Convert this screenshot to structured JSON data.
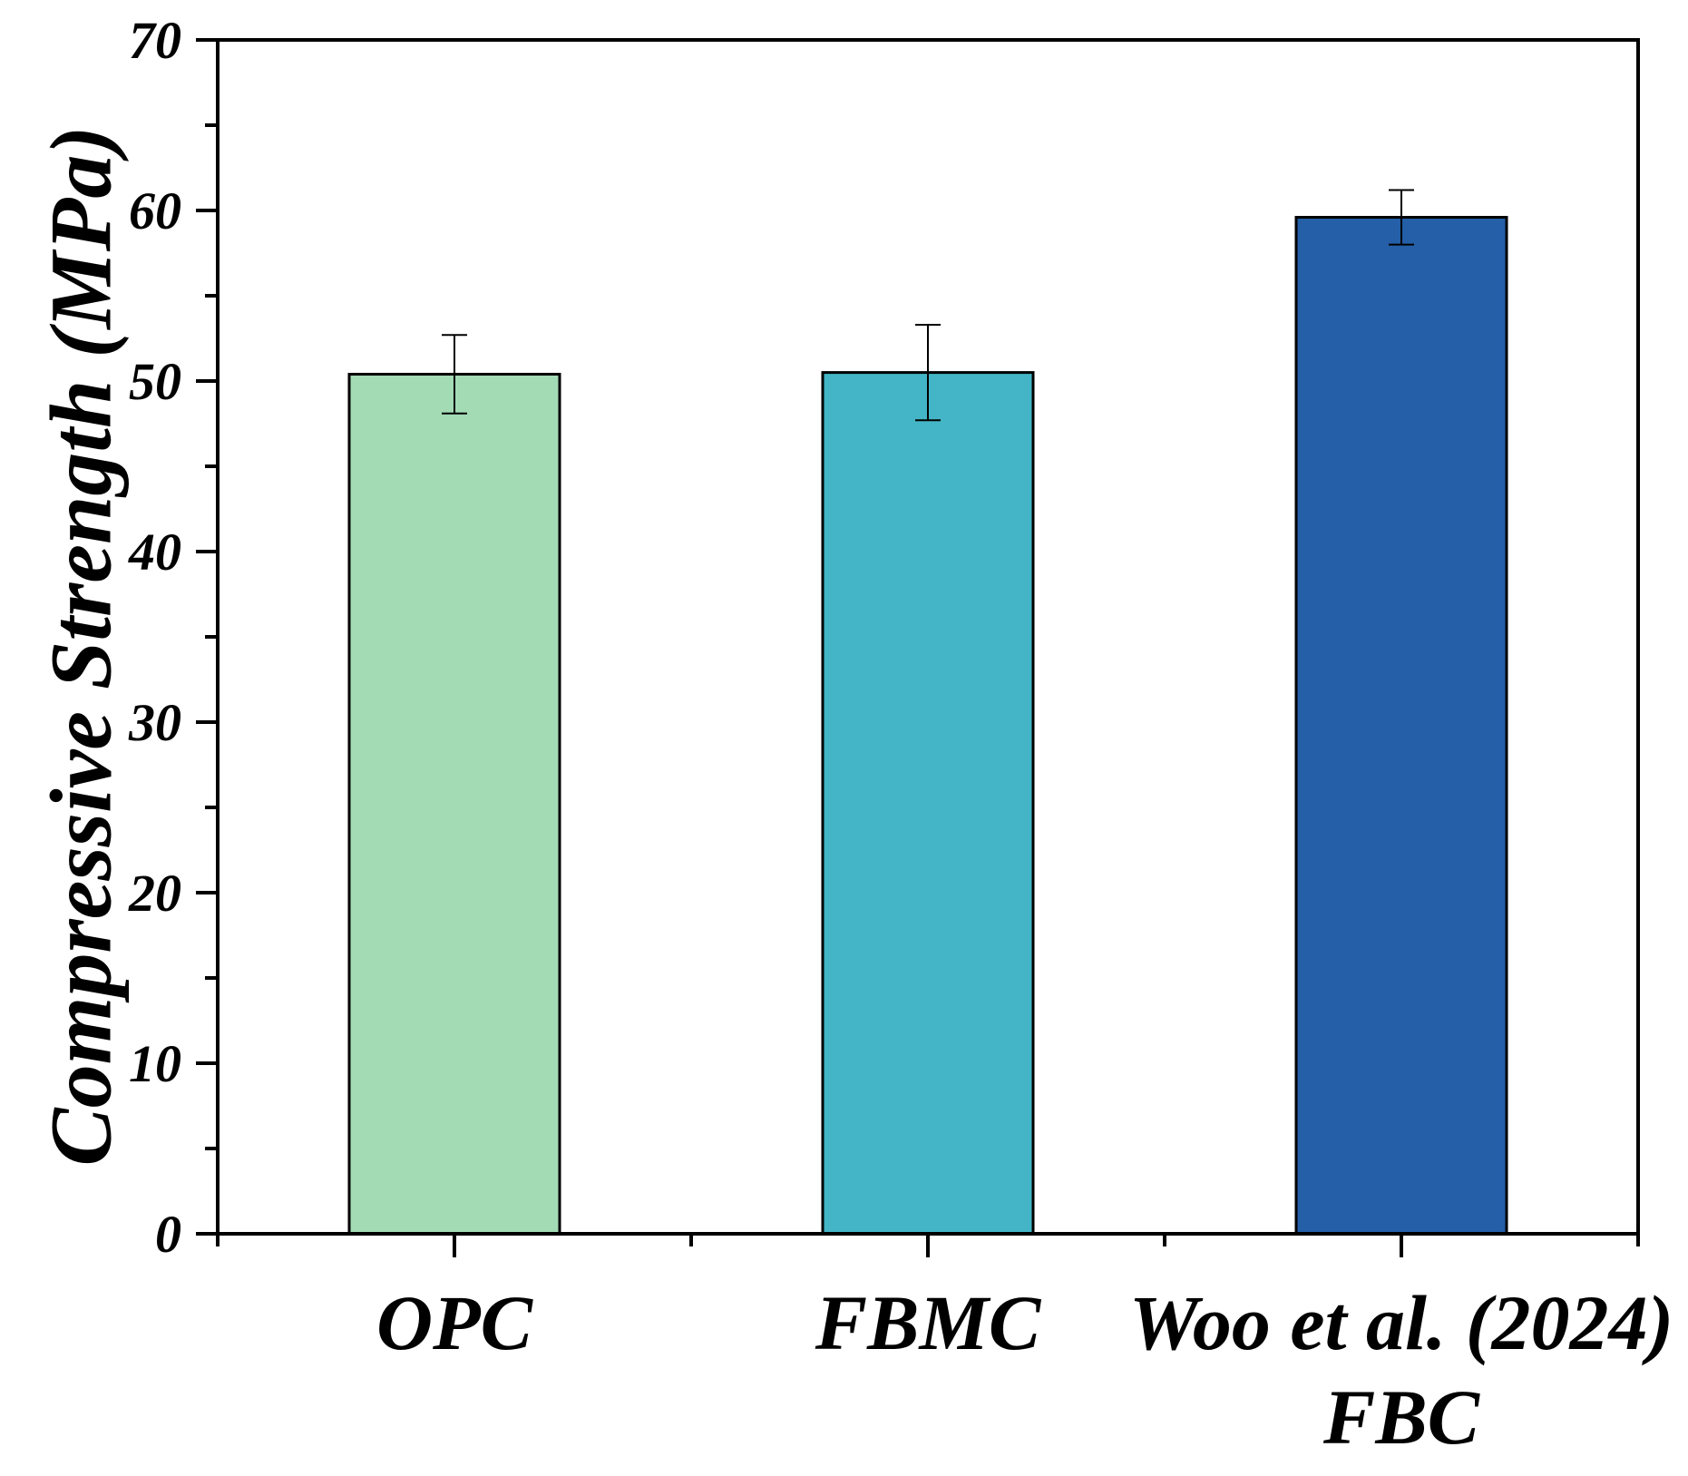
{
  "chart_data": {
    "type": "bar",
    "categories": [
      {
        "lines": [
          "OPC"
        ]
      },
      {
        "lines": [
          "FBMC"
        ]
      },
      {
        "lines": [
          "Woo et al. (2024)",
          "FBC"
        ]
      }
    ],
    "values": [
      50.4,
      50.5,
      59.6
    ],
    "error": [
      2.3,
      2.8,
      1.6
    ],
    "colors": [
      "#a3dbb5",
      "#43b5c6",
      "#245fa8"
    ],
    "xlabel": "",
    "ylabel": "Compressive Strength (MPa)",
    "ylim": [
      0,
      70
    ],
    "yticks": [
      "0",
      "10",
      "20",
      "30",
      "40",
      "50",
      "60",
      "70"
    ],
    "grid": false,
    "legend": "none"
  }
}
